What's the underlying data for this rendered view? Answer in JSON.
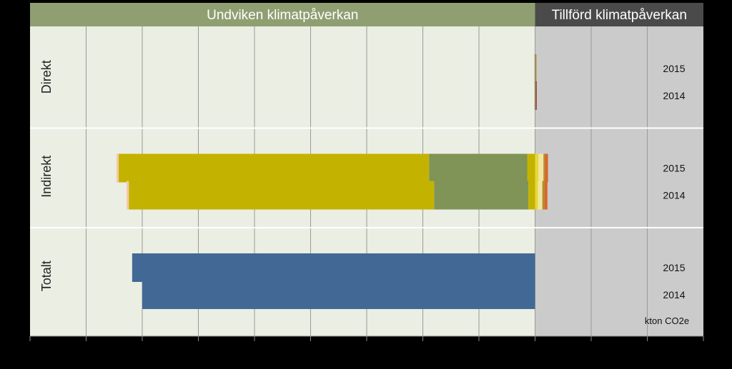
{
  "chart_data": {
    "type": "bar",
    "orientation": "horizontal",
    "stacked": true,
    "title": "",
    "xlabel": "",
    "ylabel": "",
    "unit": "kton CO2e",
    "header": {
      "left": "Undviken klimatpåverkan",
      "right": "Tillförd klimatpåverkan"
    },
    "xlim": [
      -900,
      300
    ],
    "grid": true,
    "legend": "none",
    "groups": [
      {
        "name": "Direkt",
        "rows": [
          {
            "year": "2015",
            "segments": [
              {
                "value": -1,
                "color": "#a0b070"
              },
              {
                "value": 1.5,
                "color": "#8c6a4a"
              },
              {
                "value": 1.5,
                "color": "#c9a86a"
              }
            ]
          },
          {
            "year": "2014",
            "segments": [
              {
                "value": -1,
                "color": "#a0b070"
              },
              {
                "value": 1.5,
                "color": "#8c6a4a"
              },
              {
                "value": 1.5,
                "color": "#a8343a"
              }
            ]
          }
        ]
      },
      {
        "name": "Indirekt",
        "rows": [
          {
            "year": "2015",
            "segments": [
              {
                "value": -14,
                "color": "#c3b300"
              },
              {
                "value": -175,
                "color": "#7f9456"
              },
              {
                "value": -553,
                "color": "#c3b300"
              },
              {
                "value": -4,
                "color": "#f4c9a8"
              },
              {
                "value": 6,
                "color": "#e8d63a"
              },
              {
                "value": 9,
                "color": "#f0e6a0"
              },
              {
                "value": 3,
                "color": "#b88a30"
              },
              {
                "value": 5,
                "color": "#d9662a"
              }
            ]
          },
          {
            "year": "2014",
            "segments": [
              {
                "value": -12,
                "color": "#c3b300"
              },
              {
                "value": -168,
                "color": "#7f9456"
              },
              {
                "value": -544,
                "color": "#c3b300"
              },
              {
                "value": -4,
                "color": "#f4c9a8"
              },
              {
                "value": 5,
                "color": "#e8d63a"
              },
              {
                "value": 8,
                "color": "#f0e6a0"
              },
              {
                "value": 4,
                "color": "#b88a30"
              },
              {
                "value": 5,
                "color": "#d9662a"
              }
            ]
          }
        ]
      },
      {
        "name": "Totalt",
        "rows": [
          {
            "year": "2015",
            "segments": [
              {
                "value": -718,
                "color": "#426995"
              }
            ]
          },
          {
            "year": "2014",
            "segments": [
              {
                "value": -700,
                "color": "#426995"
              }
            ]
          }
        ]
      }
    ]
  }
}
